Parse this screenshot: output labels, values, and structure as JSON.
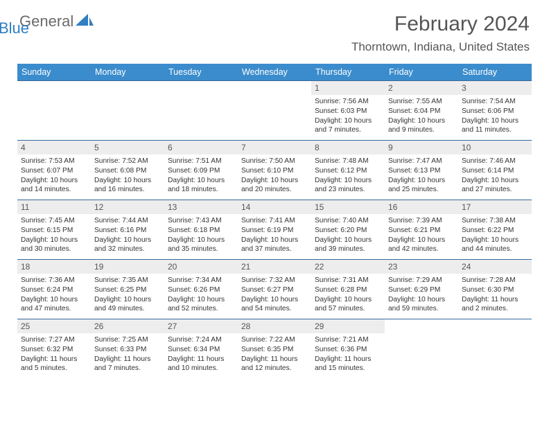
{
  "logo": {
    "general": "General",
    "blue": "Blue"
  },
  "colors": {
    "header_bg": "#3b8ccc",
    "header_text": "#ffffff",
    "row_border": "#35689b",
    "daynum_bg": "#ededed",
    "body_text": "#333333",
    "title_text": "#555555",
    "logo_gray": "#6a6a6a",
    "logo_blue": "#2f7fc2"
  },
  "title": "February 2024",
  "location": "Thorntown, Indiana, United States",
  "weekdays": [
    "Sunday",
    "Monday",
    "Tuesday",
    "Wednesday",
    "Thursday",
    "Friday",
    "Saturday"
  ],
  "weeks": [
    [
      {
        "n": "",
        "sr": "",
        "ss": "",
        "d1": "",
        "d2": ""
      },
      {
        "n": "",
        "sr": "",
        "ss": "",
        "d1": "",
        "d2": ""
      },
      {
        "n": "",
        "sr": "",
        "ss": "",
        "d1": "",
        "d2": ""
      },
      {
        "n": "",
        "sr": "",
        "ss": "",
        "d1": "",
        "d2": ""
      },
      {
        "n": "1",
        "sr": "Sunrise: 7:56 AM",
        "ss": "Sunset: 6:03 PM",
        "d1": "Daylight: 10 hours",
        "d2": "and 7 minutes."
      },
      {
        "n": "2",
        "sr": "Sunrise: 7:55 AM",
        "ss": "Sunset: 6:04 PM",
        "d1": "Daylight: 10 hours",
        "d2": "and 9 minutes."
      },
      {
        "n": "3",
        "sr": "Sunrise: 7:54 AM",
        "ss": "Sunset: 6:06 PM",
        "d1": "Daylight: 10 hours",
        "d2": "and 11 minutes."
      }
    ],
    [
      {
        "n": "4",
        "sr": "Sunrise: 7:53 AM",
        "ss": "Sunset: 6:07 PM",
        "d1": "Daylight: 10 hours",
        "d2": "and 14 minutes."
      },
      {
        "n": "5",
        "sr": "Sunrise: 7:52 AM",
        "ss": "Sunset: 6:08 PM",
        "d1": "Daylight: 10 hours",
        "d2": "and 16 minutes."
      },
      {
        "n": "6",
        "sr": "Sunrise: 7:51 AM",
        "ss": "Sunset: 6:09 PM",
        "d1": "Daylight: 10 hours",
        "d2": "and 18 minutes."
      },
      {
        "n": "7",
        "sr": "Sunrise: 7:50 AM",
        "ss": "Sunset: 6:10 PM",
        "d1": "Daylight: 10 hours",
        "d2": "and 20 minutes."
      },
      {
        "n": "8",
        "sr": "Sunrise: 7:48 AM",
        "ss": "Sunset: 6:12 PM",
        "d1": "Daylight: 10 hours",
        "d2": "and 23 minutes."
      },
      {
        "n": "9",
        "sr": "Sunrise: 7:47 AM",
        "ss": "Sunset: 6:13 PM",
        "d1": "Daylight: 10 hours",
        "d2": "and 25 minutes."
      },
      {
        "n": "10",
        "sr": "Sunrise: 7:46 AM",
        "ss": "Sunset: 6:14 PM",
        "d1": "Daylight: 10 hours",
        "d2": "and 27 minutes."
      }
    ],
    [
      {
        "n": "11",
        "sr": "Sunrise: 7:45 AM",
        "ss": "Sunset: 6:15 PM",
        "d1": "Daylight: 10 hours",
        "d2": "and 30 minutes."
      },
      {
        "n": "12",
        "sr": "Sunrise: 7:44 AM",
        "ss": "Sunset: 6:16 PM",
        "d1": "Daylight: 10 hours",
        "d2": "and 32 minutes."
      },
      {
        "n": "13",
        "sr": "Sunrise: 7:43 AM",
        "ss": "Sunset: 6:18 PM",
        "d1": "Daylight: 10 hours",
        "d2": "and 35 minutes."
      },
      {
        "n": "14",
        "sr": "Sunrise: 7:41 AM",
        "ss": "Sunset: 6:19 PM",
        "d1": "Daylight: 10 hours",
        "d2": "and 37 minutes."
      },
      {
        "n": "15",
        "sr": "Sunrise: 7:40 AM",
        "ss": "Sunset: 6:20 PM",
        "d1": "Daylight: 10 hours",
        "d2": "and 39 minutes."
      },
      {
        "n": "16",
        "sr": "Sunrise: 7:39 AM",
        "ss": "Sunset: 6:21 PM",
        "d1": "Daylight: 10 hours",
        "d2": "and 42 minutes."
      },
      {
        "n": "17",
        "sr": "Sunrise: 7:38 AM",
        "ss": "Sunset: 6:22 PM",
        "d1": "Daylight: 10 hours",
        "d2": "and 44 minutes."
      }
    ],
    [
      {
        "n": "18",
        "sr": "Sunrise: 7:36 AM",
        "ss": "Sunset: 6:24 PM",
        "d1": "Daylight: 10 hours",
        "d2": "and 47 minutes."
      },
      {
        "n": "19",
        "sr": "Sunrise: 7:35 AM",
        "ss": "Sunset: 6:25 PM",
        "d1": "Daylight: 10 hours",
        "d2": "and 49 minutes."
      },
      {
        "n": "20",
        "sr": "Sunrise: 7:34 AM",
        "ss": "Sunset: 6:26 PM",
        "d1": "Daylight: 10 hours",
        "d2": "and 52 minutes."
      },
      {
        "n": "21",
        "sr": "Sunrise: 7:32 AM",
        "ss": "Sunset: 6:27 PM",
        "d1": "Daylight: 10 hours",
        "d2": "and 54 minutes."
      },
      {
        "n": "22",
        "sr": "Sunrise: 7:31 AM",
        "ss": "Sunset: 6:28 PM",
        "d1": "Daylight: 10 hours",
        "d2": "and 57 minutes."
      },
      {
        "n": "23",
        "sr": "Sunrise: 7:29 AM",
        "ss": "Sunset: 6:29 PM",
        "d1": "Daylight: 10 hours",
        "d2": "and 59 minutes."
      },
      {
        "n": "24",
        "sr": "Sunrise: 7:28 AM",
        "ss": "Sunset: 6:30 PM",
        "d1": "Daylight: 11 hours",
        "d2": "and 2 minutes."
      }
    ],
    [
      {
        "n": "25",
        "sr": "Sunrise: 7:27 AM",
        "ss": "Sunset: 6:32 PM",
        "d1": "Daylight: 11 hours",
        "d2": "and 5 minutes."
      },
      {
        "n": "26",
        "sr": "Sunrise: 7:25 AM",
        "ss": "Sunset: 6:33 PM",
        "d1": "Daylight: 11 hours",
        "d2": "and 7 minutes."
      },
      {
        "n": "27",
        "sr": "Sunrise: 7:24 AM",
        "ss": "Sunset: 6:34 PM",
        "d1": "Daylight: 11 hours",
        "d2": "and 10 minutes."
      },
      {
        "n": "28",
        "sr": "Sunrise: 7:22 AM",
        "ss": "Sunset: 6:35 PM",
        "d1": "Daylight: 11 hours",
        "d2": "and 12 minutes."
      },
      {
        "n": "29",
        "sr": "Sunrise: 7:21 AM",
        "ss": "Sunset: 6:36 PM",
        "d1": "Daylight: 11 hours",
        "d2": "and 15 minutes."
      },
      {
        "n": "",
        "sr": "",
        "ss": "",
        "d1": "",
        "d2": ""
      },
      {
        "n": "",
        "sr": "",
        "ss": "",
        "d1": "",
        "d2": ""
      }
    ]
  ]
}
